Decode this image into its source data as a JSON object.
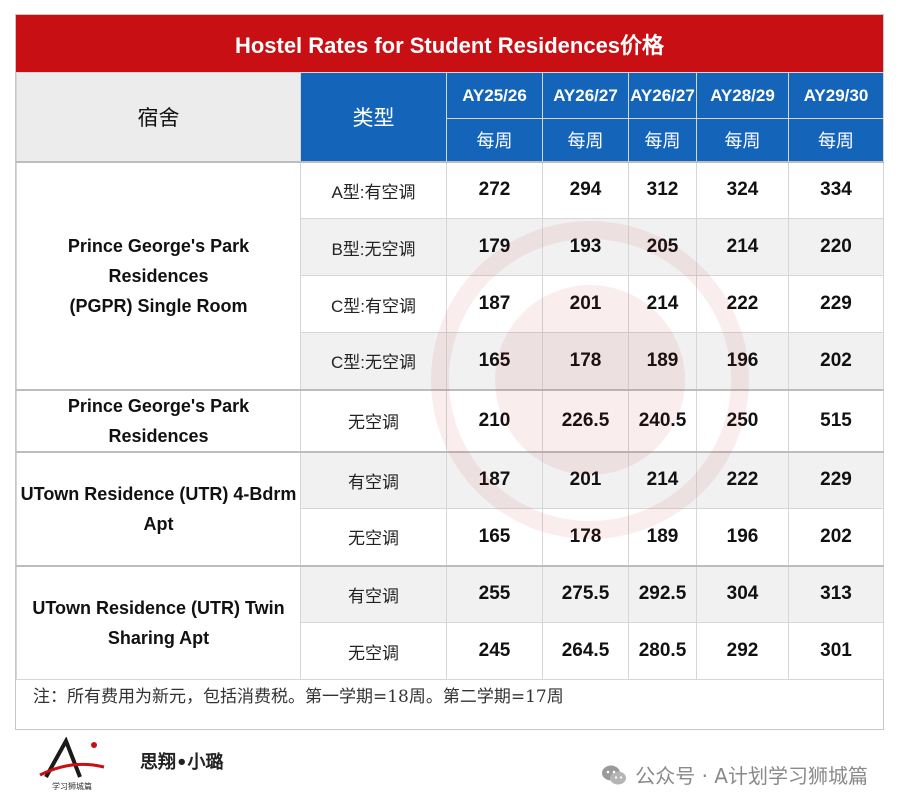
{
  "title": "Hostel Rates for Student Residences价格",
  "headers": {
    "dorm": "宿舍",
    "type": "类型",
    "years": [
      "AY25/26",
      "AY26/27",
      "AY26/27",
      "AY28/29",
      "AY29/30"
    ],
    "per_week": "每周"
  },
  "groups": [
    {
      "name": "Prince George's Park Residences (PGPR) Single Room",
      "name_lines": [
        "Prince George's Park",
        "Residences",
        "(PGPR) Single Room"
      ],
      "rows": [
        {
          "type": "A型:有空调",
          "values": [
            "272",
            "294",
            "312",
            "324",
            "334"
          ]
        },
        {
          "type": "B型:无空调",
          "values": [
            "179",
            "193",
            "205",
            "214",
            "220"
          ]
        },
        {
          "type": "C型:有空调",
          "values": [
            "187",
            "201",
            "214",
            "222",
            "229"
          ]
        },
        {
          "type": "C型:无空调",
          "values": [
            "165",
            "178",
            "189",
            "196",
            "202"
          ]
        }
      ]
    },
    {
      "name": "Prince George's Park Residences",
      "name_lines": [
        "Prince George's Park",
        "Residences"
      ],
      "rows": [
        {
          "type": "无空调",
          "values": [
            "210",
            "226.5",
            "240.5",
            "250",
            "515"
          ]
        }
      ]
    },
    {
      "name": "UTown Residence (UTR) 4-Bdrm Apt",
      "name_lines": [
        "UTown Residence (UTR) 4-Bdrm",
        "Apt"
      ],
      "rows": [
        {
          "type": "有空调",
          "values": [
            "187",
            "201",
            "214",
            "222",
            "229"
          ]
        },
        {
          "type": "无空调",
          "values": [
            "165",
            "178",
            "189",
            "196",
            "202"
          ]
        }
      ]
    },
    {
      "name": "UTown Residence (UTR) Twin Sharing Apt",
      "name_lines": [
        "UTown Residence (UTR) Twin",
        "Sharing Apt"
      ],
      "rows": [
        {
          "type": "有空调",
          "values": [
            "255",
            "275.5",
            "292.5",
            "304",
            "313"
          ]
        },
        {
          "type": "无空调",
          "values": [
            "245",
            "264.5",
            "280.5",
            "292",
            "301"
          ]
        }
      ]
    }
  ],
  "note": "注：所有费用为新元，包括消费税。第一学期=18周。第二学期=17周",
  "footer": {
    "logo_text": "学习狮城篇",
    "author": "思翔•小璐",
    "watermark": "公众号 · A计划学习狮城篇",
    "watermark_icon": "wechat-icon"
  },
  "colors": {
    "title_bg": "#c80f14",
    "header_blue": "#1465b9",
    "header_grey": "#ececec",
    "row_alt": "#f1f1f1"
  }
}
